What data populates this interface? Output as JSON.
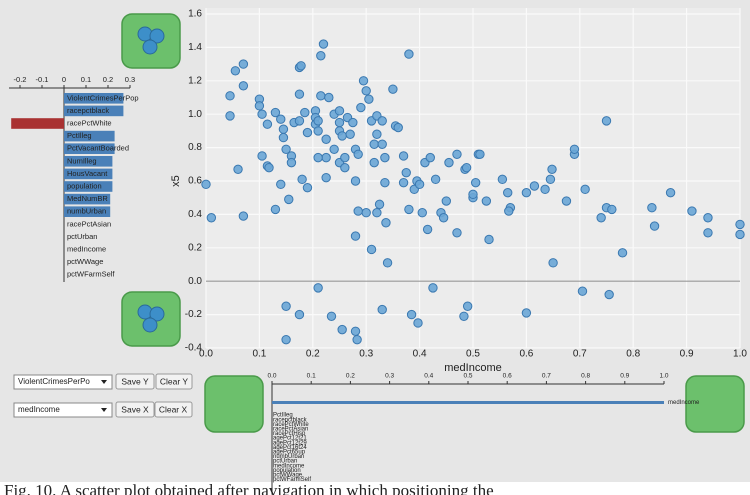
{
  "chart_data": [
    {
      "type": "scatter",
      "x_label": "medIncome",
      "y_label": "x5",
      "color": "#6aa6d6",
      "grid": true,
      "xlim": [
        0,
        1
      ],
      "ylim": [
        -0.4,
        1.6
      ],
      "xticks": [
        {
          "value": 0,
          "label": "0.0"
        },
        0.1,
        0.2,
        0.3,
        0.4,
        0.5,
        0.6,
        0.7,
        0.8,
        0.9,
        {
          "value": 1,
          "label": "1.0"
        }
      ],
      "yticks": [
        -0.4,
        -0.2,
        {
          "value": 0,
          "label": "0.0"
        },
        0.2,
        0.4,
        0.6,
        0.8,
        {
          "value": 1,
          "label": "1.0"
        },
        1.2,
        1.4,
        1.6
      ],
      "x": [
        0,
        0.01,
        0.045,
        0.045,
        0.055,
        0.07,
        0.07,
        0.06,
        0.07,
        0.1,
        0.1,
        0.105,
        0.115,
        0.105,
        0.115,
        0.118,
        0.13,
        0.14,
        0.145,
        0.145,
        0.15,
        0.16,
        0.16,
        0.14,
        0.13,
        0.155,
        0.165,
        0.175,
        0.175,
        0.178,
        0.175,
        0.185,
        0.19,
        0.18,
        0.19,
        0.205,
        0.205,
        0.205,
        0.21,
        0.22,
        0.215,
        0.215,
        0.21,
        0.225,
        0.225,
        0.225,
        0.21,
        0.23,
        0.24,
        0.25,
        0.25,
        0.25,
        0.255,
        0.24,
        0.25,
        0.26,
        0.26,
        0.265,
        0.275,
        0.27,
        0.28,
        0.285,
        0.28,
        0.29,
        0.295,
        0.3,
        0.305,
        0.31,
        0.32,
        0.315,
        0.315,
        0.32,
        0.33,
        0.33,
        0.335,
        0.335,
        0.325,
        0.32,
        0.3,
        0.285,
        0.28,
        0.31,
        0.34,
        0.337,
        0.35,
        0.355,
        0.36,
        0.37,
        0.375,
        0.37,
        0.38,
        0.38,
        0.39,
        0.395,
        0.4,
        0.405,
        0.41,
        0.42,
        0.415,
        0.43,
        0.44,
        0.445,
        0.45,
        0.455,
        0.47,
        0.47,
        0.485,
        0.488,
        0.5,
        0.5,
        0.505,
        0.51,
        0.513,
        0.53,
        0.525,
        0.555,
        0.565,
        0.57,
        0.567,
        0.6,
        0.615,
        0.635,
        0.645,
        0.648,
        0.65,
        0.675,
        0.69,
        0.69,
        0.71,
        0.74,
        0.75,
        0.76,
        0.75,
        0.78,
        0.835,
        0.84,
        0.87,
        0.91,
        0.94,
        0.94,
        1,
        1,
        0.15,
        0.175,
        0.21,
        0.235,
        0.255,
        0.28,
        0.283,
        0.33,
        0.385,
        0.397,
        0.425,
        0.483,
        0.49,
        0.6,
        0.705,
        0.755,
        0.15
      ],
      "values": [
        0.58,
        0.38,
        0.99,
        1.11,
        1.26,
        1.3,
        1.17,
        0.67,
        0.39,
        1.09,
        1.05,
        1.0,
        0.94,
        0.75,
        0.69,
        0.68,
        1.01,
        0.97,
        0.91,
        0.86,
        0.79,
        0.75,
        0.71,
        0.58,
        0.43,
        0.49,
        0.95,
        0.96,
        1.28,
        1.29,
        1.12,
        1.01,
        0.56,
        0.61,
        0.89,
        1.02,
        0.98,
        0.94,
        0.9,
        1.42,
        1.35,
        1.11,
        0.96,
        0.85,
        0.74,
        0.62,
        0.74,
        1.1,
        1.0,
        0.95,
        0.9,
        1.02,
        0.87,
        0.79,
        0.71,
        0.74,
        0.68,
        0.98,
        0.95,
        0.88,
        0.79,
        0.76,
        0.6,
        1.04,
        1.2,
        1.14,
        1.09,
        0.96,
        0.88,
        0.82,
        0.71,
        0.99,
        0.96,
        0.82,
        0.74,
        0.59,
        0.46,
        0.41,
        0.41,
        0.42,
        0.27,
        0.19,
        0.11,
        0.35,
        1.15,
        0.93,
        0.92,
        0.75,
        0.65,
        0.59,
        1.36,
        0.43,
        0.55,
        0.6,
        0.58,
        0.41,
        0.71,
        0.74,
        0.31,
        0.61,
        0.41,
        0.38,
        0.48,
        0.71,
        0.76,
        0.29,
        0.67,
        0.68,
        0.5,
        0.52,
        0.59,
        0.76,
        0.76,
        0.25,
        0.48,
        0.61,
        0.53,
        0.44,
        0.42,
        0.53,
        0.57,
        0.55,
        0.61,
        0.67,
        0.11,
        0.48,
        0.76,
        0.79,
        0.55,
        0.38,
        0.44,
        0.43,
        0.96,
        0.17,
        0.44,
        0.33,
        0.53,
        0.42,
        0.38,
        0.29,
        0.34,
        0.28,
        -0.15,
        -0.2,
        -0.04,
        -0.21,
        -0.29,
        -0.3,
        -0.35,
        -0.17,
        -0.2,
        -0.25,
        -0.04,
        -0.21,
        -0.15,
        -0.19,
        -0.06,
        -0.08,
        -0.35
      ]
    },
    {
      "type": "bar",
      "color": "#4a80b8",
      "negative_color": "#a93232",
      "xlim": [
        -0.25,
        0.3
      ],
      "xticks": [
        -0.2,
        -0.1,
        0,
        0.1,
        0.2,
        0.3
      ],
      "categories": [
        "ViolentCrimesPerPop",
        "racepctblack",
        "racePctWhite",
        "PctIlleg",
        "PctVacantBoarded",
        "NumIlleg",
        "HousVacant",
        "population",
        "MedNumBR",
        "numbUrban",
        "racePctAsian",
        "pctUrban",
        "medIncome",
        "pctWWage",
        "pctWFarmSelf"
      ],
      "values": [
        0.27,
        0.27,
        -0.24,
        0.23,
        0.23,
        0.22,
        0.22,
        0.22,
        0.21,
        0.21,
        0,
        0,
        0,
        0,
        0
      ]
    },
    {
      "type": "bar",
      "color": "#4a80b8",
      "xlim": [
        0,
        1
      ],
      "xticks": [
        {
          "value": 0,
          "label": "0.0"
        },
        0.1,
        0.2,
        0.3,
        0.4,
        0.5,
        0.6,
        0.7,
        0.8,
        0.9,
        {
          "value": 1,
          "label": "1.0"
        }
      ],
      "categories": [
        "medIncome",
        "PctIlleg",
        "racepctblack",
        "racePctWhite",
        "racePctAsian",
        "racePctHisp",
        "agePct12t21",
        "agePct12t29",
        "agePct16t24",
        "agePct65up",
        "numbUrban",
        "pctUrban",
        "medIncome",
        "population",
        "pctWWage",
        "pctWFarmSelf"
      ],
      "values": [
        1,
        0,
        0,
        0,
        0,
        0,
        0,
        0,
        0,
        0,
        0,
        0,
        0,
        0,
        0,
        0
      ]
    }
  ],
  "controls": {
    "y_select": "ViolentCrimesPerPo",
    "save_y": "Save Y",
    "clear_y": "Clear Y",
    "x_select": "medIncome",
    "save_x": "Save X",
    "clear_x": "Clear X"
  },
  "caption": "Fig. 10. A scatter plot obtained after navigation in which positioning the"
}
